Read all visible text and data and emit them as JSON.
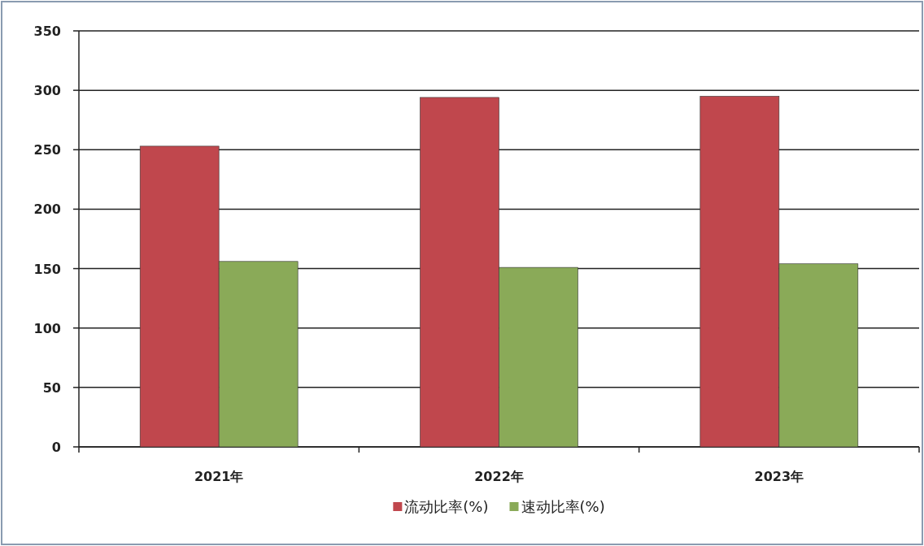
{
  "chart_data": {
    "type": "bar",
    "categories": [
      "2021年",
      "2022年",
      "2023年"
    ],
    "series": [
      {
        "name": "流动比率(%)",
        "color": "#c0474d",
        "values": [
          253,
          294,
          295
        ]
      },
      {
        "name": "速动比率(%)",
        "color": "#8aaa58",
        "values": [
          156,
          151,
          154
        ]
      }
    ],
    "ylim": [
      0,
      350
    ],
    "yticks": [
      0,
      50,
      100,
      150,
      200,
      250,
      300,
      350
    ],
    "grid": "y",
    "legend": "bottom"
  }
}
